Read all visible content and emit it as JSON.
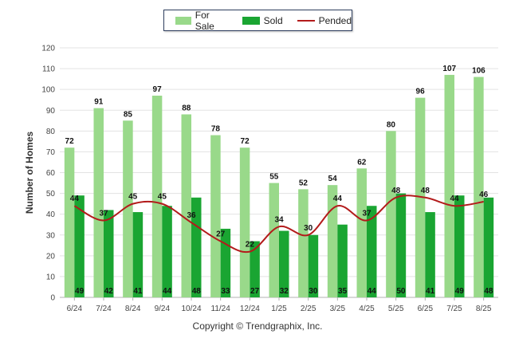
{
  "chart_data": {
    "type": "bar",
    "ylabel": "Number of Homes",
    "ylim": [
      0,
      120
    ],
    "yticks": [
      0,
      10,
      20,
      30,
      40,
      50,
      60,
      70,
      80,
      90,
      100,
      110,
      120
    ],
    "categories": [
      "6/24",
      "7/24",
      "8/24",
      "9/24",
      "10/24",
      "11/24",
      "12/24",
      "1/25",
      "2/25",
      "3/25",
      "4/25",
      "5/25",
      "6/25",
      "7/25",
      "8/25"
    ],
    "series": [
      {
        "name": "For Sale",
        "kind": "bar",
        "color": "#99d98a",
        "values": [
          72,
          91,
          85,
          97,
          88,
          78,
          72,
          55,
          52,
          54,
          62,
          80,
          96,
          107,
          106
        ]
      },
      {
        "name": "Sold",
        "kind": "bar",
        "color": "#1aa532",
        "values": [
          49,
          42,
          41,
          44,
          48,
          33,
          27,
          32,
          30,
          35,
          44,
          50,
          41,
          49,
          48
        ]
      },
      {
        "name": "Pended",
        "kind": "line",
        "color": "#b31b1b",
        "values": [
          44,
          37,
          45,
          45,
          36,
          27,
          22,
          34,
          30,
          44,
          37,
          48,
          48,
          44,
          46
        ]
      }
    ],
    "legend": "top-center",
    "grid": true
  },
  "credit": "Copyright © Trendgraphix, Inc."
}
